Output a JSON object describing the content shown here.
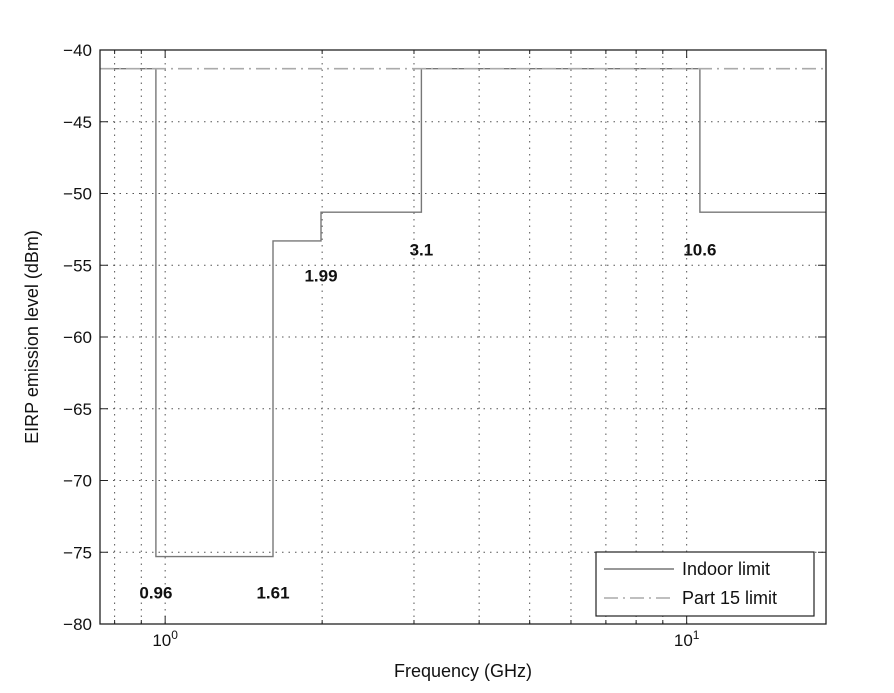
{
  "chart_data": {
    "type": "line",
    "xlabel": "Frequency (GHz)",
    "ylabel": "EIRP emission level (dBm)",
    "x_scale": "log",
    "xlim": [
      0.75,
      18.5
    ],
    "ylim": [
      -80,
      -40
    ],
    "y_ticks": [
      -80,
      -75,
      -70,
      -65,
      -60,
      -55,
      -50,
      -45,
      -40
    ],
    "y_tick_labels": [
      "−80",
      "−75",
      "−70",
      "−65",
      "−60",
      "−55",
      "−50",
      "−45",
      "−40"
    ],
    "x_ticks": [
      {
        "value": 1,
        "base": "10",
        "exp": "0"
      },
      {
        "value": 10,
        "base": "10",
        "exp": "1"
      }
    ],
    "grid": true,
    "legend_position": "bottom-right",
    "series": [
      {
        "name": "Indoor limit",
        "style": "solid",
        "color": "#777777",
        "points": [
          [
            0.75,
            -41.3
          ],
          [
            0.96,
            -41.3
          ],
          [
            0.96,
            -75.3
          ],
          [
            1.61,
            -75.3
          ],
          [
            1.61,
            -53.3
          ],
          [
            1.99,
            -53.3
          ],
          [
            1.99,
            -51.3
          ],
          [
            3.1,
            -51.3
          ],
          [
            3.1,
            -41.3
          ],
          [
            10.6,
            -41.3
          ],
          [
            10.6,
            -51.3
          ],
          [
            18.5,
            -51.3
          ]
        ]
      },
      {
        "name": "Part 15 limit",
        "style": "dashdot",
        "color": "#aaaaaa",
        "points": [
          [
            0.75,
            -41.3
          ],
          [
            18.5,
            -41.3
          ]
        ]
      }
    ],
    "annotations": [
      {
        "text": "0.96",
        "x": 0.96,
        "y": -77.8
      },
      {
        "text": "1.61",
        "x": 1.61,
        "y": -77.8
      },
      {
        "text": "1.99",
        "x": 1.99,
        "y": -55.7
      },
      {
        "text": "3.1",
        "x": 3.1,
        "y": -53.9
      },
      {
        "text": "10.6",
        "x": 10.6,
        "y": -53.9
      }
    ]
  }
}
